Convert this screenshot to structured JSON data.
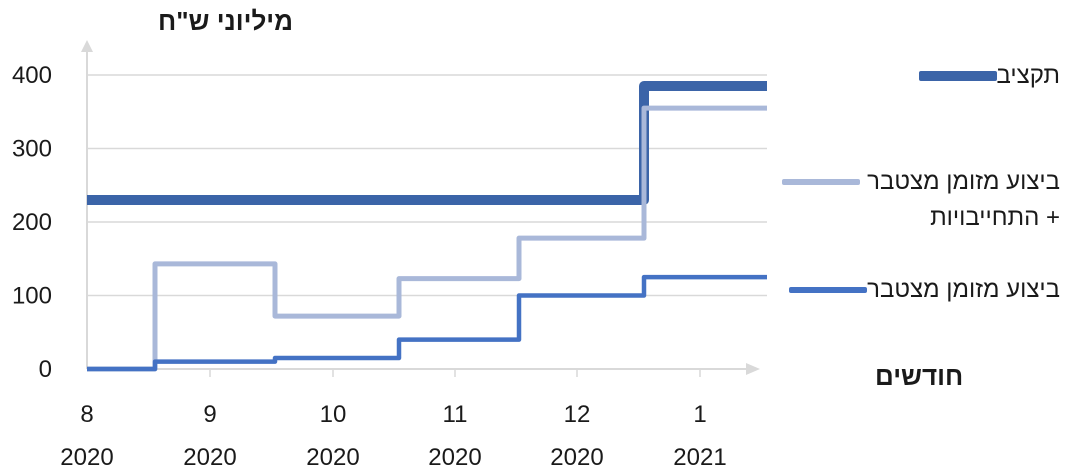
{
  "chart_data": {
    "type": "line",
    "ylabel": "מיליוני ש\"ח",
    "xlabel": "חודשים",
    "ylim": [
      0,
      400
    ],
    "yticks": [
      0,
      100,
      200,
      300,
      400
    ],
    "x_categories": [
      {
        "month": "8",
        "year": "2020"
      },
      {
        "month": "9",
        "year": "2020"
      },
      {
        "month": "10",
        "year": "2020"
      },
      {
        "month": "11",
        "year": "2020"
      },
      {
        "month": "12",
        "year": "2020"
      },
      {
        "month": "1",
        "year": "2021"
      }
    ],
    "grid": "horizontal",
    "legend_position": "right",
    "step_style": "step",
    "series": [
      {
        "name": "תקציב",
        "color": "#3b64a8",
        "style": "thick",
        "values": [
          230,
          230,
          230,
          230,
          230,
          385
        ]
      },
      {
        "name": "ביצוע מזומן מצטבר + התחייבויות",
        "color": "#a9b8d9",
        "style": "medium",
        "values": [
          0,
          143,
          72,
          123,
          178,
          355
        ]
      },
      {
        "name": "ביצוע מזומן מצטבר",
        "color": "#4472c4",
        "style": "medium",
        "values": [
          0,
          10,
          15,
          40,
          100,
          125
        ]
      }
    ]
  }
}
